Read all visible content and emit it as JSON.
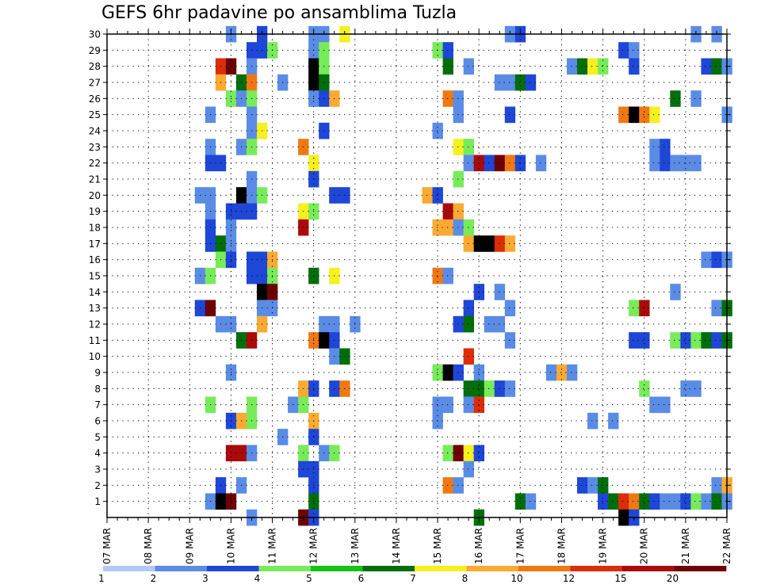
{
  "chart_data": {
    "type": "heatmap",
    "title": "GEFS 6hr padavine po ansamblima Tuzla",
    "x_tick_labels": [
      "07 MAR",
      "08 MAR",
      "09 MAR",
      "10 MAR",
      "11 MAR",
      "12 MAR",
      "13 MAR",
      "14 MAR",
      "15 MAR",
      "16 MAR",
      "17 MAR",
      "18 MAR",
      "19 MAR",
      "20 MAR",
      "21 MAR",
      "22 MAR"
    ],
    "y_tick_labels": [
      "1",
      "2",
      "3",
      "4",
      "5",
      "6",
      "7",
      "8",
      "9",
      "10",
      "11",
      "12",
      "13",
      "14",
      "15",
      "16",
      "17",
      "18",
      "19",
      "20",
      "21",
      "22",
      "23",
      "24",
      "25",
      "26",
      "27",
      "28",
      "29",
      "30"
    ],
    "x_axis": {
      "type": "time",
      "start": "07 MAR",
      "step_hours": 6,
      "n_steps": 61
    },
    "y_axis": {
      "members": [
        0,
        30
      ]
    },
    "grid": true,
    "legend": {
      "position": "bottom",
      "labels": [
        "1",
        "2",
        "3",
        "4",
        "5",
        "6",
        "7",
        "8",
        "10",
        "12",
        "15",
        "20"
      ],
      "colors": [
        "#b4c8f5",
        "#5a8ce6",
        "#1e46d7",
        "#78eb5a",
        "#14c314",
        "#006e0a",
        "#f5f01e",
        "#faaa32",
        "#f07814",
        "#dc2d0a",
        "#aa0a0a",
        "#6e0000"
      ]
    },
    "cells": [
      [
        30,
        12,
        1
      ],
      [
        30,
        15,
        2
      ],
      [
        30,
        20,
        1
      ],
      [
        30,
        21,
        1
      ],
      [
        30,
        23,
        6
      ],
      [
        30,
        39,
        1
      ],
      [
        30,
        40,
        2
      ],
      [
        30,
        57,
        1
      ],
      [
        30,
        59,
        1
      ],
      [
        29,
        14,
        2
      ],
      [
        29,
        15,
        2
      ],
      [
        29,
        16,
        3
      ],
      [
        29,
        20,
        1
      ],
      [
        29,
        21,
        3
      ],
      [
        29,
        32,
        3
      ],
      [
        29,
        33,
        2
      ],
      [
        29,
        50,
        2
      ],
      [
        29,
        51,
        1
      ],
      [
        28,
        11,
        9
      ],
      [
        28,
        12,
        11
      ],
      [
        28,
        14,
        1
      ],
      [
        28,
        20,
        12
      ],
      [
        28,
        21,
        3
      ],
      [
        28,
        33,
        5
      ],
      [
        28,
        35,
        1
      ],
      [
        28,
        45,
        1
      ],
      [
        28,
        46,
        5
      ],
      [
        28,
        47,
        6
      ],
      [
        28,
        48,
        3
      ],
      [
        28,
        51,
        2
      ],
      [
        28,
        58,
        2
      ],
      [
        28,
        59,
        5
      ],
      [
        28,
        60,
        1
      ],
      [
        27,
        11,
        7
      ],
      [
        27,
        13,
        5
      ],
      [
        27,
        14,
        8
      ],
      [
        27,
        17,
        1
      ],
      [
        27,
        20,
        12
      ],
      [
        27,
        21,
        5
      ],
      [
        27,
        38,
        1
      ],
      [
        27,
        39,
        1
      ],
      [
        27,
        40,
        5
      ],
      [
        27,
        41,
        2
      ],
      [
        26,
        12,
        3
      ],
      [
        26,
        13,
        1
      ],
      [
        26,
        14,
        3
      ],
      [
        26,
        20,
        1
      ],
      [
        26,
        21,
        2
      ],
      [
        26,
        22,
        7
      ],
      [
        26,
        33,
        8
      ],
      [
        26,
        34,
        1
      ],
      [
        26,
        55,
        5
      ],
      [
        26,
        57,
        1
      ],
      [
        25,
        10,
        1
      ],
      [
        25,
        14,
        1
      ],
      [
        25,
        34,
        1
      ],
      [
        25,
        39,
        2
      ],
      [
        25,
        50,
        8
      ],
      [
        25,
        51,
        12
      ],
      [
        25,
        52,
        8
      ],
      [
        25,
        53,
        6
      ],
      [
        25,
        60,
        1
      ],
      [
        24,
        14,
        1
      ],
      [
        24,
        15,
        6
      ],
      [
        24,
        21,
        2
      ],
      [
        24,
        32,
        1
      ],
      [
        23,
        10,
        1
      ],
      [
        23,
        13,
        1
      ],
      [
        23,
        14,
        3
      ],
      [
        23,
        19,
        8
      ],
      [
        23,
        34,
        6
      ],
      [
        23,
        35,
        3
      ],
      [
        23,
        53,
        1
      ],
      [
        23,
        54,
        2
      ],
      [
        22,
        10,
        2
      ],
      [
        22,
        11,
        2
      ],
      [
        22,
        20,
        6
      ],
      [
        22,
        35,
        1
      ],
      [
        22,
        36,
        10
      ],
      [
        22,
        37,
        2
      ],
      [
        22,
        38,
        11
      ],
      [
        22,
        39,
        8
      ],
      [
        22,
        40,
        2
      ],
      [
        22,
        42,
        1
      ],
      [
        22,
        53,
        1
      ],
      [
        22,
        54,
        2
      ],
      [
        22,
        55,
        1
      ],
      [
        22,
        56,
        1
      ],
      [
        22,
        57,
        1
      ],
      [
        21,
        14,
        1
      ],
      [
        21,
        20,
        2
      ],
      [
        21,
        34,
        3
      ],
      [
        20,
        9,
        1
      ],
      [
        20,
        10,
        1
      ],
      [
        20,
        13,
        12
      ],
      [
        20,
        14,
        1
      ],
      [
        20,
        15,
        3
      ],
      [
        20,
        22,
        2
      ],
      [
        20,
        23,
        2
      ],
      [
        20,
        31,
        7
      ],
      [
        20,
        32,
        2
      ],
      [
        19,
        10,
        1
      ],
      [
        19,
        12,
        2
      ],
      [
        19,
        13,
        2
      ],
      [
        19,
        14,
        2
      ],
      [
        19,
        19,
        6
      ],
      [
        19,
        20,
        3
      ],
      [
        19,
        33,
        10
      ],
      [
        19,
        34,
        7
      ],
      [
        18,
        10,
        2
      ],
      [
        18,
        12,
        1
      ],
      [
        18,
        19,
        10
      ],
      [
        18,
        32,
        7
      ],
      [
        18,
        33,
        7
      ],
      [
        18,
        34,
        1
      ],
      [
        18,
        35,
        3
      ],
      [
        17,
        10,
        2
      ],
      [
        17,
        11,
        5
      ],
      [
        17,
        12,
        1
      ],
      [
        17,
        35,
        7
      ],
      [
        17,
        36,
        12
      ],
      [
        17,
        37,
        12
      ],
      [
        17,
        38,
        9
      ],
      [
        17,
        39,
        7
      ],
      [
        16,
        11,
        3
      ],
      [
        16,
        12,
        2
      ],
      [
        16,
        14,
        2
      ],
      [
        16,
        15,
        2
      ],
      [
        16,
        16,
        7
      ],
      [
        16,
        58,
        1
      ],
      [
        16,
        59,
        2
      ],
      [
        16,
        60,
        1
      ],
      [
        15,
        9,
        1
      ],
      [
        15,
        10,
        3
      ],
      [
        15,
        14,
        2
      ],
      [
        15,
        15,
        2
      ],
      [
        15,
        16,
        3
      ],
      [
        15,
        20,
        5
      ],
      [
        15,
        22,
        6
      ],
      [
        15,
        32,
        8
      ],
      [
        15,
        33,
        1
      ],
      [
        14,
        15,
        12
      ],
      [
        14,
        16,
        11
      ],
      [
        14,
        36,
        2
      ],
      [
        14,
        38,
        1
      ],
      [
        14,
        55,
        1
      ],
      [
        13,
        9,
        2
      ],
      [
        13,
        10,
        11
      ],
      [
        13,
        15,
        1
      ],
      [
        13,
        16,
        1
      ],
      [
        13,
        35,
        2
      ],
      [
        13,
        39,
        1
      ],
      [
        13,
        51,
        3
      ],
      [
        13,
        52,
        10
      ],
      [
        13,
        59,
        1
      ],
      [
        13,
        60,
        5
      ],
      [
        12,
        11,
        1
      ],
      [
        12,
        12,
        1
      ],
      [
        12,
        15,
        7
      ],
      [
        12,
        21,
        1
      ],
      [
        12,
        22,
        1
      ],
      [
        12,
        24,
        1
      ],
      [
        12,
        34,
        2
      ],
      [
        12,
        35,
        5
      ],
      [
        12,
        37,
        1
      ],
      [
        12,
        38,
        1
      ],
      [
        11,
        13,
        5
      ],
      [
        11,
        14,
        10
      ],
      [
        11,
        20,
        8
      ],
      [
        11,
        21,
        12
      ],
      [
        11,
        22,
        2
      ],
      [
        11,
        39,
        1
      ],
      [
        11,
        51,
        2
      ],
      [
        11,
        52,
        2
      ],
      [
        11,
        55,
        3
      ],
      [
        11,
        56,
        2
      ],
      [
        11,
        57,
        3
      ],
      [
        11,
        58,
        5
      ],
      [
        11,
        59,
        2
      ],
      [
        11,
        60,
        5
      ],
      [
        10,
        22,
        1
      ],
      [
        10,
        23,
        5
      ],
      [
        10,
        35,
        9
      ],
      [
        9,
        12,
        1
      ],
      [
        9,
        32,
        3
      ],
      [
        9,
        33,
        12
      ],
      [
        9,
        34,
        2
      ],
      [
        9,
        36,
        1
      ],
      [
        9,
        43,
        1
      ],
      [
        9,
        44,
        7
      ],
      [
        9,
        45,
        1
      ],
      [
        8,
        19,
        7
      ],
      [
        8,
        20,
        2
      ],
      [
        8,
        22,
        2
      ],
      [
        8,
        23,
        8
      ],
      [
        8,
        35,
        5
      ],
      [
        8,
        36,
        5
      ],
      [
        8,
        37,
        3
      ],
      [
        8,
        38,
        2
      ],
      [
        8,
        39,
        1
      ],
      [
        8,
        52,
        3
      ],
      [
        8,
        56,
        1
      ],
      [
        8,
        57,
        1
      ],
      [
        7,
        10,
        3
      ],
      [
        7,
        14,
        3
      ],
      [
        7,
        18,
        1
      ],
      [
        7,
        19,
        3
      ],
      [
        7,
        32,
        1
      ],
      [
        7,
        33,
        1
      ],
      [
        7,
        35,
        1
      ],
      [
        7,
        36,
        9
      ],
      [
        7,
        53,
        1
      ],
      [
        7,
        54,
        1
      ],
      [
        6,
        12,
        2
      ],
      [
        6,
        13,
        7
      ],
      [
        6,
        14,
        3
      ],
      [
        6,
        20,
        7
      ],
      [
        6,
        32,
        1
      ],
      [
        6,
        47,
        1
      ],
      [
        6,
        49,
        1
      ],
      [
        5,
        17,
        1
      ],
      [
        5,
        20,
        2
      ],
      [
        4,
        12,
        10
      ],
      [
        4,
        13,
        10
      ],
      [
        4,
        14,
        1
      ],
      [
        4,
        19,
        3
      ],
      [
        4,
        21,
        1
      ],
      [
        4,
        22,
        3
      ],
      [
        4,
        33,
        3
      ],
      [
        4,
        34,
        11
      ],
      [
        4,
        35,
        6
      ],
      [
        4,
        36,
        2
      ],
      [
        3,
        19,
        2
      ],
      [
        3,
        20,
        2
      ],
      [
        3,
        35,
        1
      ],
      [
        2,
        11,
        2
      ],
      [
        2,
        13,
        1
      ],
      [
        2,
        20,
        2
      ],
      [
        2,
        33,
        8
      ],
      [
        2,
        34,
        1
      ],
      [
        2,
        46,
        2
      ],
      [
        2,
        47,
        1
      ],
      [
        2,
        48,
        5
      ],
      [
        2,
        59,
        1
      ],
      [
        2,
        60,
        7
      ],
      [
        1,
        10,
        1
      ],
      [
        1,
        11,
        12
      ],
      [
        1,
        12,
        11
      ],
      [
        1,
        20,
        5
      ],
      [
        1,
        40,
        5
      ],
      [
        1,
        41,
        1
      ],
      [
        1,
        48,
        2
      ],
      [
        1,
        49,
        5
      ],
      [
        1,
        50,
        9
      ],
      [
        1,
        51,
        8
      ],
      [
        1,
        52,
        5
      ],
      [
        1,
        53,
        2
      ],
      [
        1,
        54,
        1
      ],
      [
        1,
        55,
        1
      ],
      [
        1,
        56,
        2
      ],
      [
        1,
        57,
        3
      ],
      [
        1,
        58,
        1
      ],
      [
        1,
        59,
        5
      ],
      [
        1,
        60,
        1
      ],
      [
        0,
        14,
        1
      ],
      [
        0,
        19,
        11
      ],
      [
        0,
        20,
        2
      ],
      [
        0,
        36,
        5
      ],
      [
        0,
        50,
        12
      ],
      [
        0,
        51,
        2
      ]
    ]
  }
}
